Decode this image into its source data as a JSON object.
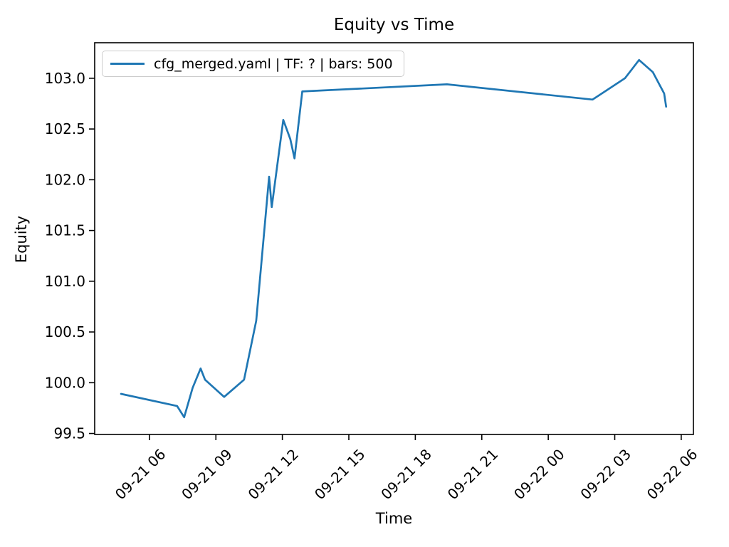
{
  "figure": {
    "title": "Equity vs Time",
    "xlabel": "Time",
    "ylabel": "Equity",
    "legend_label": "cfg_merged.yaml | TF: ? | bars: 500"
  },
  "colors": {
    "line": "#1f77b4",
    "axis": "#000000",
    "text": "#000000",
    "legend_border": "#cccccc",
    "background": "#ffffff"
  },
  "chart_data": {
    "type": "line",
    "title": "Equity vs Time",
    "xlabel": "Time",
    "ylabel": "Equity",
    "legend": [
      "cfg_merged.yaml | TF: ? | bars: 500"
    ],
    "legend_position": "upper left",
    "grid": false,
    "x_axis": {
      "tick_labels": [
        "09-21 06",
        "09-21 09",
        "09-21 12",
        "09-21 15",
        "09-21 18",
        "09-21 21",
        "09-22 00",
        "09-22 03",
        "09-22 06"
      ],
      "tick_hours": [
        6,
        9,
        12,
        15,
        18,
        21,
        24,
        27,
        30
      ],
      "range_hours": [
        3.53,
        30.55
      ],
      "label_rotation_deg": 45
    },
    "y_axis": {
      "tick_labels": [
        "99.5",
        "100.0",
        "100.5",
        "101.0",
        "101.5",
        "102.0",
        "102.5",
        "103.0"
      ],
      "ticks": [
        99.5,
        100.0,
        100.5,
        101.0,
        101.5,
        102.0,
        102.5,
        103.0
      ],
      "range": [
        99.49,
        103.35
      ]
    },
    "series": [
      {
        "name": "cfg_merged.yaml | TF: ? | bars: 500",
        "color": "#1f77b4",
        "x_time": [
          "09-21 04:43",
          "09-21 07:15",
          "09-21 07:34",
          "09-21 07:57",
          "09-21 08:19",
          "09-21 08:31",
          "09-21 09:22",
          "09-21 10:16",
          "09-21 10:49",
          "09-21 11:24",
          "09-21 11:31",
          "09-21 12:02",
          "09-21 12:22",
          "09-21 12:33",
          "09-21 12:54",
          "09-21 19:26",
          "09-22 02:00",
          "09-22 03:28",
          "09-22 04:06",
          "09-22 04:43",
          "09-22 05:14",
          "09-22 05:19"
        ],
        "x_hours": [
          4.72,
          7.25,
          7.57,
          7.95,
          8.31,
          8.51,
          9.37,
          10.27,
          10.82,
          11.4,
          11.52,
          12.04,
          12.36,
          12.55,
          12.9,
          19.43,
          26.0,
          27.46,
          28.1,
          28.72,
          29.23,
          29.32
        ],
        "equity": [
          99.89,
          99.77,
          99.66,
          99.95,
          100.14,
          100.03,
          99.86,
          100.03,
          100.61,
          102.03,
          101.73,
          102.59,
          102.4,
          102.21,
          102.87,
          102.94,
          102.79,
          103.0,
          103.18,
          103.06,
          102.85,
          102.72
        ]
      }
    ]
  }
}
